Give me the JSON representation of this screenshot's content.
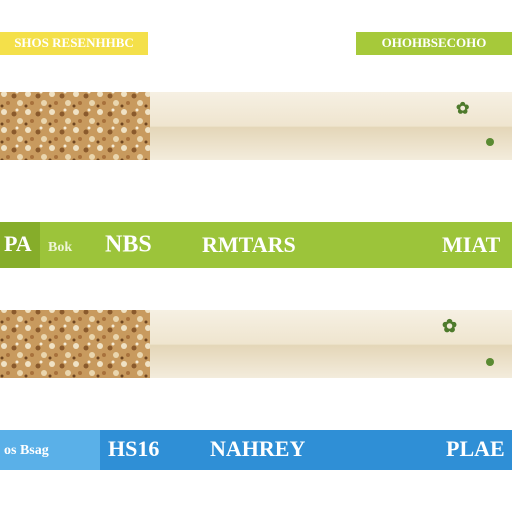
{
  "top_labels": {
    "left": "SHOS RESENHHBC",
    "right": "OHOHBSECOHO"
  },
  "bands": [
    {
      "labels": [
        "PA",
        "Bok",
        "NBS",
        "RMTARS",
        "MIAT"
      ]
    },
    {
      "labels": [
        "os Bsag",
        "HS16",
        "NAHREY",
        "PLAE"
      ]
    }
  ]
}
